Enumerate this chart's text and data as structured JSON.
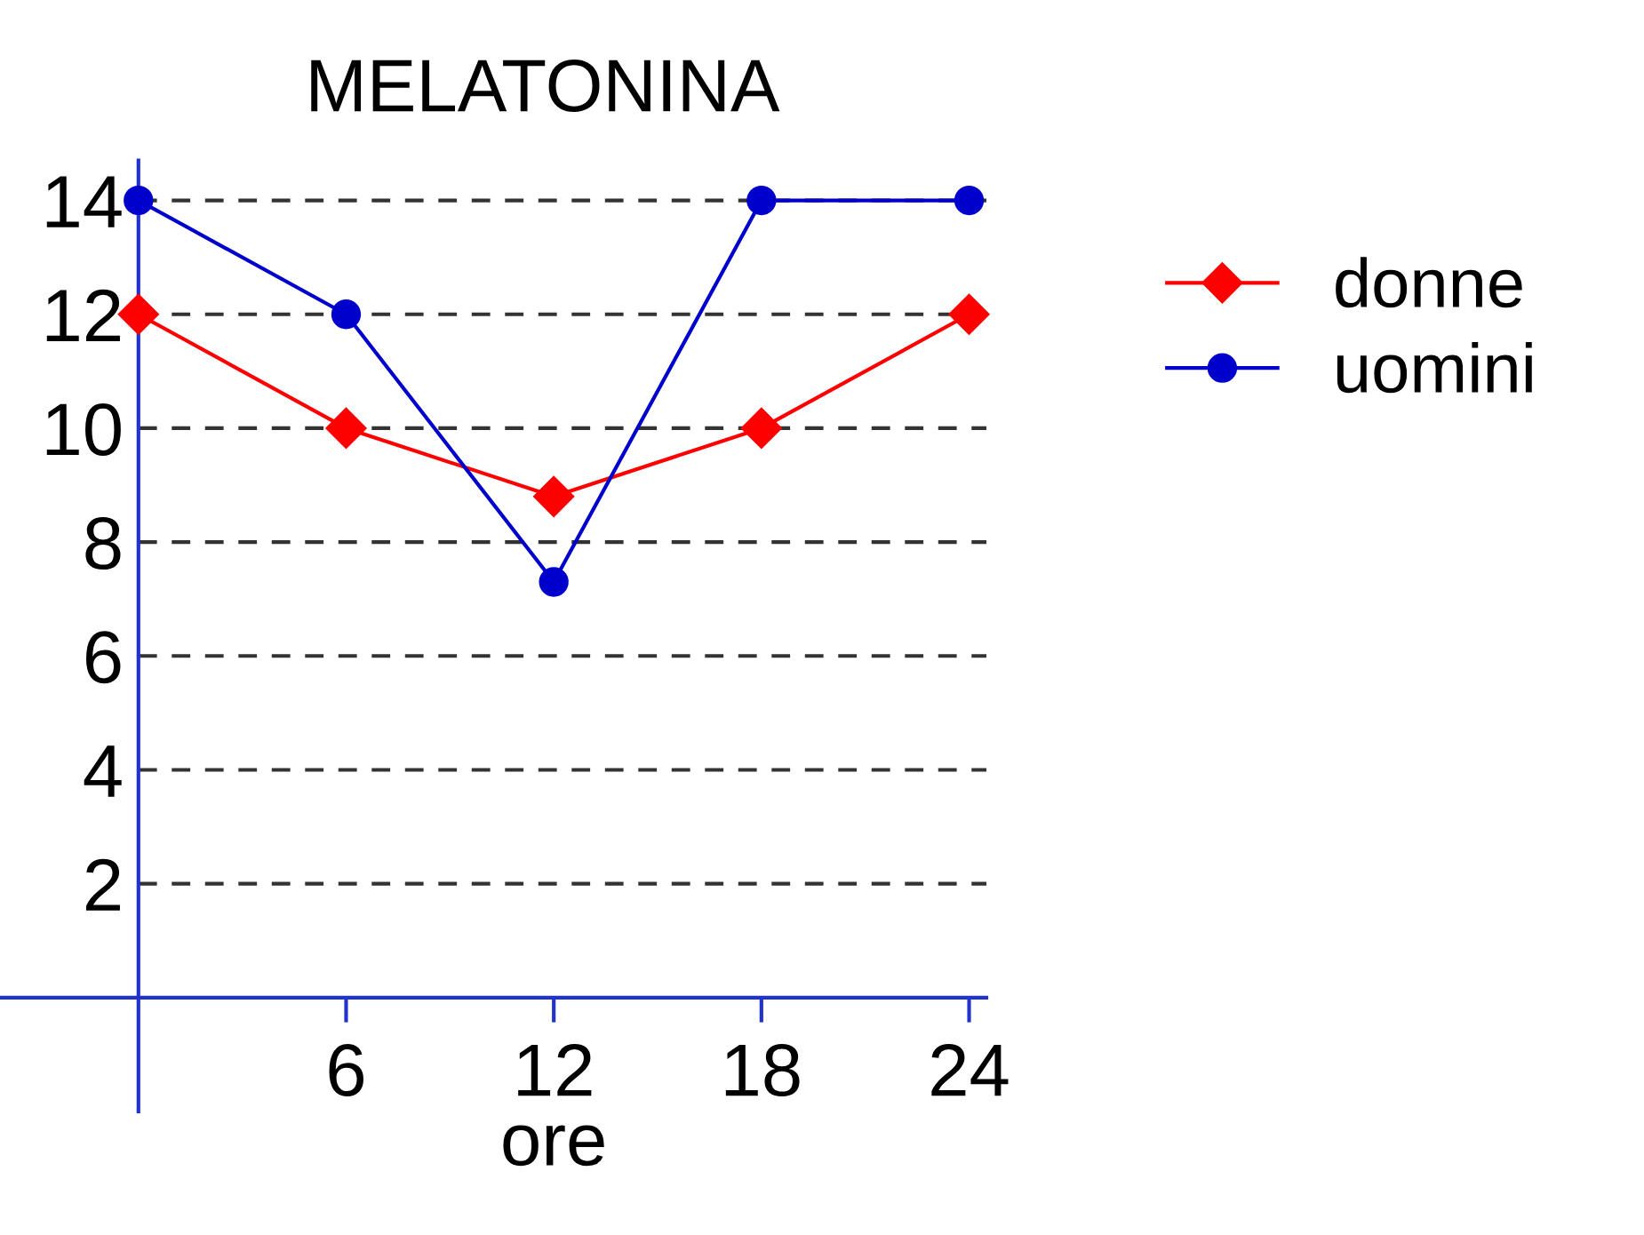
{
  "chart_data": {
    "type": "line",
    "title": "MELATONINA",
    "xlabel": "ore",
    "x": [
      0,
      6,
      12,
      18,
      24
    ],
    "series": [
      {
        "name": "donne",
        "color": "#ff0000",
        "marker": "diamond",
        "values": [
          12,
          10,
          8.8,
          10,
          12
        ]
      },
      {
        "name": "uomini",
        "color": "#0000cc",
        "marker": "circle",
        "values": [
          14,
          12,
          7.3,
          14,
          14
        ]
      }
    ],
    "xlim": [
      -4,
      24.5
    ],
    "ylim": [
      -2,
      14.7
    ],
    "xticks": [
      6,
      12,
      18,
      24
    ],
    "yticks": [
      2,
      4,
      6,
      8,
      10,
      12,
      14
    ],
    "grid": "y",
    "legend": "right",
    "line_style": "solid"
  }
}
